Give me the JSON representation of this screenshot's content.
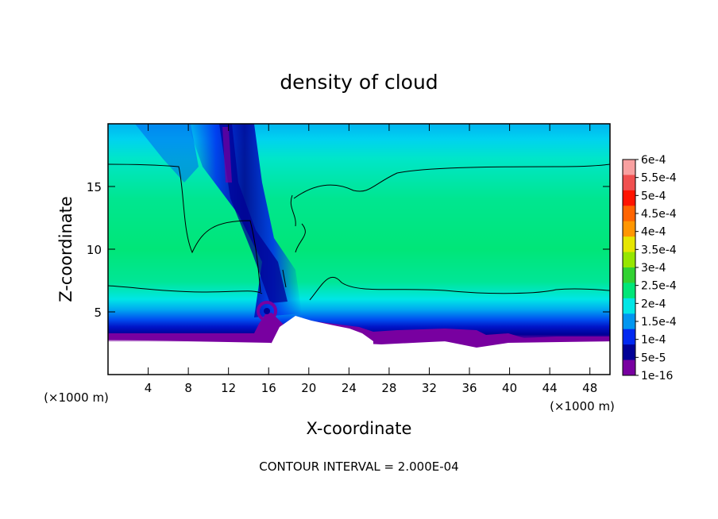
{
  "chart_data": {
    "type": "heatmap",
    "title": "density of cloud",
    "xlabel": "X-coordinate",
    "ylabel": "Z-coordinate",
    "x_unit": "(×1000 m)",
    "y_unit": "(×1000 m)",
    "xlim": [
      0,
      50
    ],
    "ylim": [
      0,
      20
    ],
    "x_ticks": [
      4,
      8,
      12,
      16,
      20,
      24,
      28,
      32,
      36,
      40,
      44,
      48
    ],
    "y_ticks": [
      5,
      10,
      15
    ],
    "footer": "CONTOUR INTERVAL = 2.000E-04",
    "contour_interval": 0.0002,
    "colorbar": {
      "labels": [
        "6e-4",
        "5.5e-4",
        "5e-4",
        "4.5e-4",
        "4e-4",
        "3.5e-4",
        "3e-4",
        "2.5e-4",
        "2e-4",
        "1.5e-4",
        "1e-4",
        "5e-5",
        "1e-16"
      ],
      "colors": [
        "#f8a0a0",
        "#f05050",
        "#ff1400",
        "#ff6400",
        "#ff9600",
        "#e6e600",
        "#96e600",
        "#32d232",
        "#00e678",
        "#00e6e6",
        "#0096f0",
        "#0028f0",
        "#000096",
        "#7800a0"
      ]
    },
    "field_summary": [
      {
        "x_range": [
          0,
          50
        ],
        "z_range": [
          0,
          3
        ],
        "value": "no cloud (blank)"
      },
      {
        "x_range": [
          0,
          50
        ],
        "z_range": [
          3,
          4
        ],
        "value": "1e-16 to 5e-5"
      },
      {
        "x_range": [
          0,
          50
        ],
        "z_range": [
          4,
          7
        ],
        "value": "5e-5 to 2e-4"
      },
      {
        "x_range": [
          0,
          50
        ],
        "z_range": [
          7,
          16.7
        ],
        "value": "2e-4 to 3e-4"
      },
      {
        "x_range": [
          0,
          50
        ],
        "z_range": [
          16.7,
          20
        ],
        "value": "1e-4 to 2e-4"
      },
      {
        "x_range": [
          8,
          20
        ],
        "z_range": [
          4,
          20
        ],
        "value": "below 1e-4 (depleted column)"
      }
    ]
  }
}
